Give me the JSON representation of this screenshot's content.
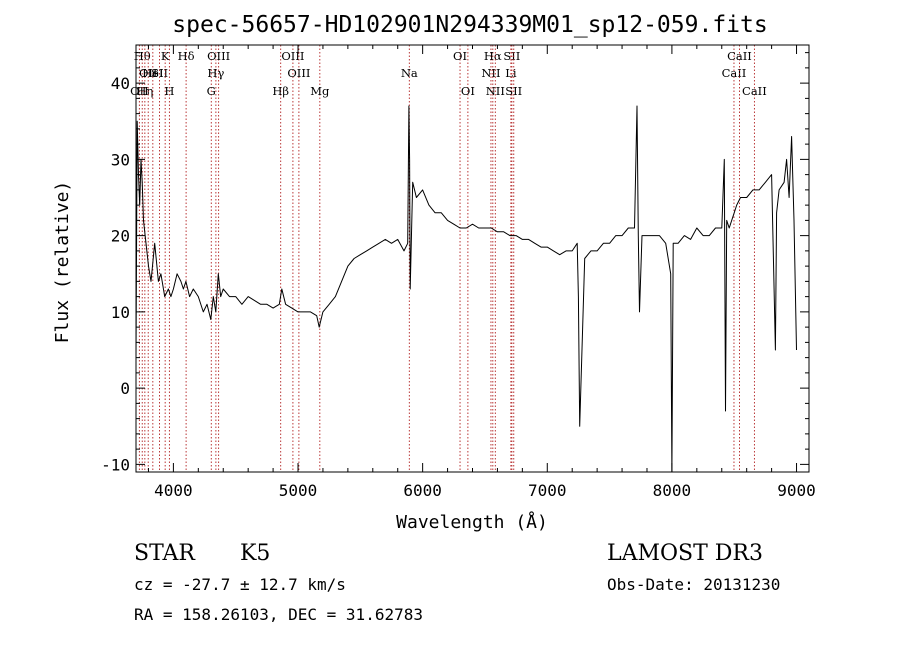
{
  "chart_data": {
    "type": "line",
    "title": "spec-56657-HD102901N294339M01_sp12-059.fits",
    "xlabel": "Wavelength (Å)",
    "ylabel": "Flux (relative)",
    "xlim": [
      3700,
      9100
    ],
    "ylim": [
      -11,
      45
    ],
    "x_ticks": [
      4000,
      5000,
      6000,
      7000,
      8000,
      9000
    ],
    "y_ticks": [
      -10,
      0,
      10,
      20,
      30,
      40
    ],
    "grid": false,
    "legend": "none",
    "series": [
      {
        "color": "#000000",
        "x": [
          3700,
          3710,
          3720,
          3730,
          3740,
          3750,
          3760,
          3780,
          3800,
          3820,
          3850,
          3880,
          3900,
          3930,
          3960,
          3980,
          4000,
          4030,
          4060,
          4080,
          4100,
          4130,
          4160,
          4200,
          4240,
          4270,
          4300,
          4320,
          4340,
          4360,
          4380,
          4400,
          4450,
          4500,
          4550,
          4600,
          4650,
          4700,
          4750,
          4800,
          4850,
          4870,
          4900,
          4950,
          5000,
          5050,
          5100,
          5150,
          5170,
          5200,
          5250,
          5300,
          5350,
          5400,
          5450,
          5500,
          5550,
          5600,
          5650,
          5700,
          5750,
          5800,
          5850,
          5880,
          5890,
          5895,
          5900,
          5920,
          5950,
          6000,
          6050,
          6100,
          6150,
          6200,
          6250,
          6300,
          6350,
          6400,
          6450,
          6500,
          6550,
          6600,
          6650,
          6700,
          6750,
          6800,
          6850,
          6900,
          6950,
          7000,
          7050,
          7100,
          7150,
          7200,
          7240,
          7250,
          7260,
          7300,
          7350,
          7400,
          7450,
          7500,
          7550,
          7600,
          7650,
          7700,
          7720,
          7730,
          7740,
          7760,
          7800,
          7850,
          7900,
          7950,
          7990,
          8000,
          8010,
          8050,
          8100,
          8150,
          8200,
          8250,
          8300,
          8350,
          8400,
          8420,
          8430,
          8440,
          8460,
          8500,
          8520,
          8550,
          8600,
          8650,
          8700,
          8750,
          8800,
          8830,
          8840,
          8860,
          8900,
          8920,
          8940,
          8960,
          8980,
          9000
        ],
        "y": [
          4,
          35,
          28,
          24,
          30,
          27,
          22,
          19,
          16,
          14,
          19,
          14,
          15,
          12,
          13,
          12,
          13,
          15,
          14,
          13,
          14,
          12,
          13,
          12,
          10,
          11,
          9,
          12,
          10,
          15,
          12,
          13,
          12,
          12,
          11,
          12,
          11.5,
          11,
          11,
          10.5,
          11,
          13,
          11,
          10.5,
          10,
          10,
          10,
          9.5,
          8,
          10,
          11,
          12,
          14,
          16,
          17,
          17.5,
          18,
          18.5,
          19,
          19.5,
          19,
          19.5,
          18,
          19,
          37,
          30,
          13,
          27,
          25,
          26,
          24,
          23,
          23,
          22,
          21.5,
          21,
          21,
          21.5,
          21,
          21,
          21,
          20.5,
          20.5,
          20,
          20,
          19.5,
          19.5,
          19,
          18.5,
          18.5,
          18,
          17.5,
          18,
          18,
          19,
          12,
          -5,
          17,
          18,
          18,
          19,
          19,
          20,
          20,
          21,
          21,
          37,
          20,
          10,
          20,
          20,
          20,
          20,
          19,
          15,
          -11,
          19,
          19,
          20,
          19.5,
          21,
          20,
          20,
          21,
          21,
          30,
          -3,
          22,
          21,
          23,
          24,
          25,
          25,
          26,
          26,
          27,
          28,
          5,
          23,
          26,
          27,
          30,
          25,
          33,
          22,
          5
        ]
      }
    ],
    "line_markers": [
      {
        "x": 3727,
        "label": "OII",
        "row": 3
      },
      {
        "x": 3750,
        "label": "Hθ",
        "row": 1
      },
      {
        "x": 3771,
        "label": "Hη",
        "row": 3
      },
      {
        "x": 3798,
        "label": "OII",
        "row": 2
      },
      {
        "x": 3835,
        "label": "HeI",
        "row": 2
      },
      {
        "x": 3889,
        "label": "SII",
        "row": 2
      },
      {
        "x": 3934,
        "label": "K",
        "row": 1
      },
      {
        "x": 3968,
        "label": "H",
        "row": 3
      },
      {
        "x": 4102,
        "label": "Hδ",
        "row": 1
      },
      {
        "x": 4304,
        "label": "G",
        "row": 3
      },
      {
        "x": 4341,
        "label": "Hγ",
        "row": 2
      },
      {
        "x": 4363,
        "label": "OIII",
        "row": 1
      },
      {
        "x": 4861,
        "label": "Hβ",
        "row": 3
      },
      {
        "x": 4959,
        "label": "OIII",
        "row": 1
      },
      {
        "x": 5007,
        "label": "OIII",
        "row": 2
      },
      {
        "x": 5175,
        "label": "Mg",
        "row": 3
      },
      {
        "x": 5893,
        "label": "Na",
        "row": 2
      },
      {
        "x": 6300,
        "label": "OI",
        "row": 1
      },
      {
        "x": 6363,
        "label": "OI",
        "row": 3
      },
      {
        "x": 6548,
        "label": "NII",
        "row": 2
      },
      {
        "x": 6563,
        "label": "Hα",
        "row": 1
      },
      {
        "x": 6583,
        "label": "NII",
        "row": 3
      },
      {
        "x": 6708,
        "label": "Li",
        "row": 2
      },
      {
        "x": 6716,
        "label": "SII",
        "row": 1
      },
      {
        "x": 6731,
        "label": "SII",
        "row": 3
      },
      {
        "x": 8498,
        "label": "CaII",
        "row": 2
      },
      {
        "x": 8542,
        "label": "CaII",
        "row": 1
      },
      {
        "x": 8662,
        "label": "CaII",
        "row": 3
      }
    ]
  },
  "info": {
    "class_label": "STAR",
    "subclass_label": "K5",
    "cz_line": "cz = -27.7 ± 12.7 km/s",
    "radec_line": "RA = 158.26103, DEC =  31.62783",
    "survey_label": "LAMOST DR3",
    "obs_date_line": "Obs-Date: 20131230"
  },
  "colors": {
    "spectrum": "#000000",
    "marker_line": "#b22222",
    "axis": "#000000"
  }
}
